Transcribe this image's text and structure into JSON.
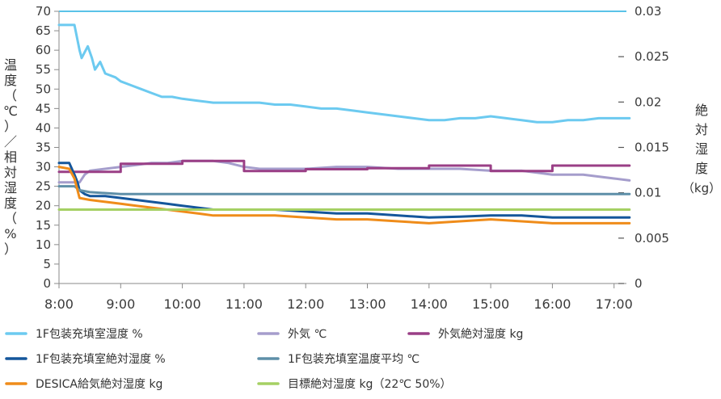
{
  "chart_data": {
    "type": "line",
    "x_ticks": [
      "8:00",
      "9:00",
      "10:00",
      "11:00",
      "12:00",
      "13:00",
      "14:00",
      "15:00",
      "16:00",
      "17:00"
    ],
    "xlim": [
      "8:00",
      "17:15"
    ],
    "y_left": {
      "label_chars": [
        "温",
        "度",
        "（",
        "℃",
        "）",
        "／",
        "相",
        "対",
        "湿",
        "度",
        "（",
        "%",
        "）"
      ],
      "ticks": [
        "0",
        "5",
        "10",
        "15",
        "20",
        "25",
        "30",
        "35",
        "40",
        "45",
        "50",
        "55",
        "60",
        "65",
        "70"
      ],
      "range": [
        0,
        70
      ]
    },
    "y_right": {
      "label_chars": [
        "絶",
        "対",
        "湿",
        "度",
        "（kg）"
      ],
      "ticks": [
        "0",
        "0.005",
        "0.01",
        "0.015",
        "0.02",
        "0.025",
        "0.03"
      ],
      "range": [
        0,
        0.03
      ]
    },
    "grid": false,
    "legend_position": "bottom",
    "series": [
      {
        "name": "1F包装充填室湿度 %",
        "axis": "left",
        "color": "#6ccaf0",
        "points": [
          [
            "8:00",
            66.5
          ],
          [
            "8:15",
            66.5
          ],
          [
            "8:20",
            60
          ],
          [
            "8:22",
            58
          ],
          [
            "8:28",
            61
          ],
          [
            "8:32",
            58
          ],
          [
            "8:35",
            55
          ],
          [
            "8:40",
            57
          ],
          [
            "8:45",
            54
          ],
          [
            "8:55",
            53
          ],
          [
            "9:00",
            52
          ],
          [
            "9:10",
            51
          ],
          [
            "9:20",
            50
          ],
          [
            "9:30",
            49
          ],
          [
            "9:40",
            48
          ],
          [
            "9:50",
            48
          ],
          [
            "10:00",
            47.5
          ],
          [
            "10:15",
            47
          ],
          [
            "10:30",
            46.5
          ],
          [
            "10:45",
            46.5
          ],
          [
            "11:00",
            46.5
          ],
          [
            "11:15",
            46.5
          ],
          [
            "11:30",
            46
          ],
          [
            "11:45",
            46
          ],
          [
            "12:00",
            45.5
          ],
          [
            "12:15",
            45
          ],
          [
            "12:30",
            45
          ],
          [
            "12:45",
            44.5
          ],
          [
            "13:00",
            44
          ],
          [
            "13:15",
            43.5
          ],
          [
            "13:30",
            43
          ],
          [
            "13:45",
            42.5
          ],
          [
            "14:00",
            42
          ],
          [
            "14:15",
            42
          ],
          [
            "14:30",
            42.5
          ],
          [
            "14:45",
            42.5
          ],
          [
            "15:00",
            43
          ],
          [
            "15:15",
            42.5
          ],
          [
            "15:30",
            42
          ],
          [
            "15:45",
            41.5
          ],
          [
            "16:00",
            41.5
          ],
          [
            "16:15",
            42
          ],
          [
            "16:30",
            42
          ],
          [
            "16:45",
            42.5
          ],
          [
            "17:00",
            42.5
          ],
          [
            "17:15",
            42.5
          ]
        ]
      },
      {
        "name": "外気 ℃",
        "axis": "left",
        "color": "#a59dcc",
        "points": [
          [
            "8:00",
            26
          ],
          [
            "8:20",
            26
          ],
          [
            "8:25",
            28
          ],
          [
            "8:30",
            29
          ],
          [
            "8:45",
            29.5
          ],
          [
            "9:00",
            30
          ],
          [
            "9:15",
            30.5
          ],
          [
            "9:30",
            31
          ],
          [
            "9:45",
            31
          ],
          [
            "10:00",
            31.5
          ],
          [
            "10:15",
            31.5
          ],
          [
            "10:30",
            31.5
          ],
          [
            "10:45",
            31
          ],
          [
            "11:00",
            30
          ],
          [
            "11:15",
            29.5
          ],
          [
            "11:30",
            29.5
          ],
          [
            "12:00",
            29.5
          ],
          [
            "12:30",
            30
          ],
          [
            "13:00",
            30
          ],
          [
            "13:30",
            29.5
          ],
          [
            "14:00",
            29.5
          ],
          [
            "14:30",
            29.5
          ],
          [
            "15:00",
            29
          ],
          [
            "15:30",
            29
          ],
          [
            "15:45",
            28.5
          ],
          [
            "16:00",
            28
          ],
          [
            "16:30",
            28
          ],
          [
            "16:45",
            27.5
          ],
          [
            "17:00",
            27
          ],
          [
            "17:15",
            26.5
          ]
        ]
      },
      {
        "name": "外気絶対湿度 kg",
        "axis": "right",
        "color": "#9a3f86",
        "points": [
          [
            "8:00",
            0.0123
          ],
          [
            "8:40",
            0.0123
          ],
          [
            "9:00",
            0.0123
          ],
          [
            "9:00",
            0.0132
          ],
          [
            "10:00",
            0.0132
          ],
          [
            "10:00",
            0.0135
          ],
          [
            "11:00",
            0.0135
          ],
          [
            "11:00",
            0.0124
          ],
          [
            "12:00",
            0.0124
          ],
          [
            "12:00",
            0.0126
          ],
          [
            "13:00",
            0.0126
          ],
          [
            "13:00",
            0.0127
          ],
          [
            "14:00",
            0.0127
          ],
          [
            "14:00",
            0.013
          ],
          [
            "15:00",
            0.013
          ],
          [
            "15:00",
            0.0124
          ],
          [
            "16:00",
            0.0124
          ],
          [
            "16:00",
            0.013
          ],
          [
            "17:15",
            0.013
          ]
        ]
      },
      {
        "name": "1F包装充填室絶対湿度 %",
        "axis": "left",
        "color": "#14569b",
        "points": [
          [
            "8:00",
            31
          ],
          [
            "8:10",
            31
          ],
          [
            "8:15",
            28
          ],
          [
            "8:18",
            26
          ],
          [
            "8:20",
            24
          ],
          [
            "8:25",
            23
          ],
          [
            "8:30",
            22.5
          ],
          [
            "8:45",
            22.5
          ],
          [
            "9:00",
            22
          ],
          [
            "9:15",
            21.5
          ],
          [
            "9:30",
            21
          ],
          [
            "9:45",
            20.5
          ],
          [
            "10:00",
            20
          ],
          [
            "10:15",
            19.5
          ],
          [
            "10:30",
            19
          ],
          [
            "11:00",
            19
          ],
          [
            "11:30",
            19
          ],
          [
            "12:00",
            18.5
          ],
          [
            "12:30",
            18
          ],
          [
            "13:00",
            18
          ],
          [
            "13:30",
            17.5
          ],
          [
            "14:00",
            17
          ],
          [
            "14:30",
            17.2
          ],
          [
            "15:00",
            17.5
          ],
          [
            "15:30",
            17.5
          ],
          [
            "16:00",
            17
          ],
          [
            "16:30",
            17
          ],
          [
            "17:00",
            17
          ],
          [
            "17:15",
            17
          ]
        ]
      },
      {
        "name": "1F包装充填室温度平均 ℃",
        "axis": "left",
        "color": "#5e8fa8",
        "points": [
          [
            "8:00",
            25
          ],
          [
            "8:15",
            25
          ],
          [
            "8:20",
            24
          ],
          [
            "8:30",
            23.5
          ],
          [
            "9:00",
            23
          ],
          [
            "10:00",
            23
          ],
          [
            "11:00",
            23
          ],
          [
            "12:00",
            23
          ],
          [
            "13:00",
            23
          ],
          [
            "14:00",
            23
          ],
          [
            "15:00",
            23
          ],
          [
            "16:00",
            23
          ],
          [
            "17:00",
            23
          ],
          [
            "17:15",
            23
          ]
        ]
      },
      {
        "name": "DESICA給気絶対湿度 kg",
        "axis": "left",
        "color": "#ef8c1a",
        "points": [
          [
            "8:00",
            30
          ],
          [
            "8:10",
            29.5
          ],
          [
            "8:15",
            27
          ],
          [
            "8:18",
            24
          ],
          [
            "8:20",
            22
          ],
          [
            "8:30",
            21.5
          ],
          [
            "8:45",
            21
          ],
          [
            "9:00",
            20.5
          ],
          [
            "9:15",
            20
          ],
          [
            "9:30",
            19.5
          ],
          [
            "9:45",
            19
          ],
          [
            "10:00",
            18.5
          ],
          [
            "10:15",
            18
          ],
          [
            "10:30",
            17.5
          ],
          [
            "11:00",
            17.5
          ],
          [
            "11:30",
            17.5
          ],
          [
            "12:00",
            17
          ],
          [
            "12:30",
            16.5
          ],
          [
            "13:00",
            16.5
          ],
          [
            "13:30",
            16
          ],
          [
            "14:00",
            15.5
          ],
          [
            "14:30",
            16
          ],
          [
            "15:00",
            16.5
          ],
          [
            "15:30",
            16
          ],
          [
            "16:00",
            15.5
          ],
          [
            "16:30",
            15.5
          ],
          [
            "17:00",
            15.5
          ],
          [
            "17:15",
            15.5
          ]
        ]
      },
      {
        "name": "目標絶対湿度 kg（22℃ 50%）",
        "axis": "left",
        "color": "#a5d063",
        "points": [
          [
            "8:00",
            19
          ],
          [
            "17:15",
            19
          ]
        ]
      }
    ],
    "extras": {
      "top_line": {
        "axis": "left",
        "value": 70,
        "color": "#5ac3e8"
      }
    }
  },
  "legend_order": [
    "1F包装充填室湿度 %",
    "外気 ℃",
    "外気絶対湿度 kg",
    "1F包装充填室絶対湿度 %",
    "1F包装充填室温度平均 ℃",
    "DESICA給気絶対湿度 kg",
    "目標絶対湿度 kg（22℃ 50%）"
  ]
}
